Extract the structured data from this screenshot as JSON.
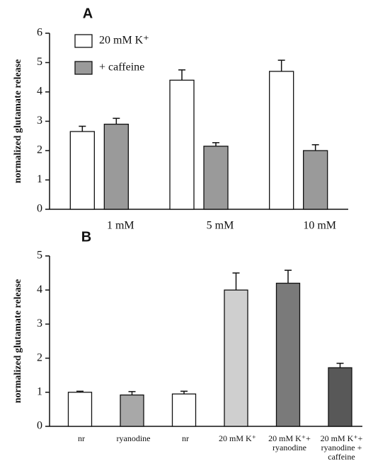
{
  "chart_data": [
    {
      "type": "grouped-bar",
      "title": "A",
      "y_label": "normalized glutamate release",
      "categories": [
        "1 mM",
        "5 mM",
        "10 mM"
      ],
      "series": [
        {
          "name": "20 mM K⁺",
          "color": "#ffffff",
          "values": [
            2.65,
            4.4,
            4.7
          ],
          "errors": [
            0.18,
            0.35,
            0.38
          ]
        },
        {
          "name": "+ caffeine",
          "color": "#9a9a9a",
          "values": [
            2.9,
            2.15,
            2.0
          ],
          "errors": [
            0.2,
            0.12,
            0.2
          ]
        }
      ],
      "ylim": [
        0,
        6
      ],
      "yticks": [
        0,
        1,
        2,
        3,
        4,
        5,
        6
      ],
      "legend": "upper-left"
    },
    {
      "type": "bar",
      "title": "B",
      "y_label": "normalized glutamate release",
      "categories": [
        [
          "nr"
        ],
        [
          "ryanodine"
        ],
        [
          "nr"
        ],
        [
          "20 mM K⁺"
        ],
        [
          "20 mM K⁺+",
          "ryanodine"
        ],
        [
          "20 mM K⁺+",
          "ryanodine +",
          "caffeine"
        ]
      ],
      "values": [
        1.0,
        0.92,
        0.95,
        4.0,
        4.2,
        1.72
      ],
      "errors": [
        0.03,
        0.1,
        0.08,
        0.5,
        0.38,
        0.13
      ],
      "colors": [
        "#ffffff",
        "#a8a8a8",
        "#ffffff",
        "#cfcfcf",
        "#7a7a7a",
        "#585858"
      ],
      "ylim": [
        0,
        5
      ],
      "yticks": [
        0,
        1,
        2,
        3,
        4,
        5
      ]
    }
  ]
}
